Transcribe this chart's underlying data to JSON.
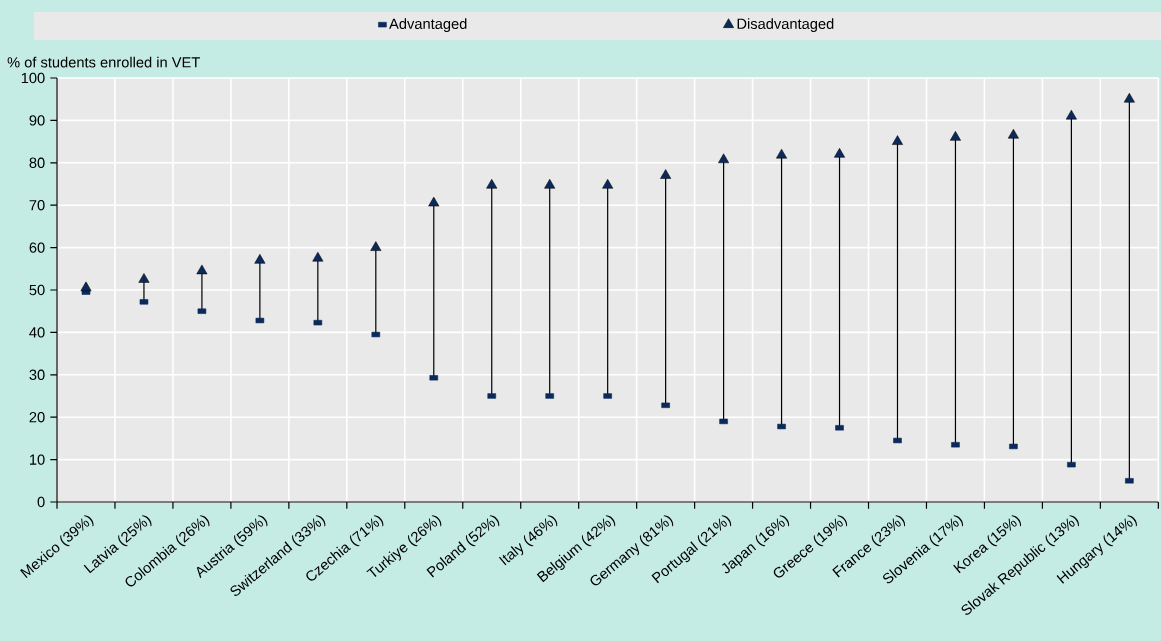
{
  "chart_data": {
    "type": "scatter",
    "ylabel": "% of students enrolled in VET",
    "categories": [
      "Mexico (39%)",
      "Latvia (25%)",
      "Colombia (26%)",
      "Austria (59%)",
      "Switzerland (33%)",
      "Czechia (71%)",
      "Turkiye (26%)",
      "Poland (52%)",
      "Italy (46%)",
      "Belgium (42%)",
      "Germany (81%)",
      "Portugal (21%)",
      "Japan (16%)",
      "Greece (19%)",
      "France (23%)",
      "Slovenia (17%)",
      "Korea (15%)",
      "Slovak Republic (13%)",
      "Hungary (14%)"
    ],
    "series": [
      {
        "name": "Advantaged",
        "color": "#0b2a5b",
        "marker": "square",
        "values": [
          49.5,
          47.2,
          45,
          42.8,
          42.3,
          39.5,
          29.3,
          25,
          25,
          25,
          22.8,
          19,
          17.8,
          17.5,
          14.5,
          13.5,
          13.1,
          8.8,
          5
        ]
      },
      {
        "name": "Disadvantaged",
        "color": "#0b2a5b",
        "marker": "triangle",
        "values": [
          50.5,
          52.5,
          54.5,
          57,
          57.5,
          60,
          70.5,
          74.7,
          74.7,
          74.7,
          77,
          80.7,
          81.8,
          82,
          85,
          86,
          86.5,
          91,
          95
        ]
      }
    ],
    "ylim": [
      0,
      100
    ],
    "yticks": [
      0,
      10,
      20,
      30,
      40,
      50,
      60,
      70,
      80,
      90,
      100
    ],
    "grid": true,
    "legend": "top"
  }
}
